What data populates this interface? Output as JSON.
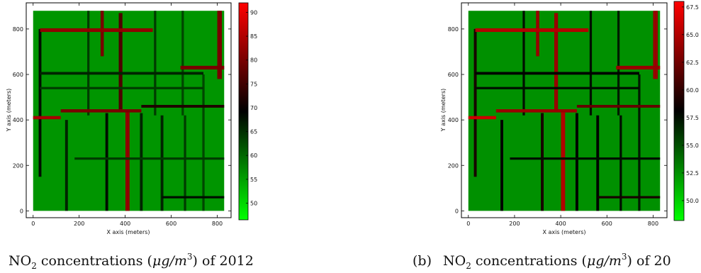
{
  "chart_data": [
    {
      "type": "heatmap",
      "caption": {
        "label": "",
        "text": "NO",
        "subscript": "2",
        "mid": " concentrations (",
        "unit_num": "μg/m",
        "unit_exp": "3",
        "tail": ") of 2012"
      },
      "xlabel": "X axis (meters)",
      "ylabel": "Y axis (meters)",
      "xlim": [
        -30,
        860
      ],
      "ylim": [
        -30,
        915
      ],
      "extent_x": [
        0,
        830
      ],
      "extent_y": [
        0,
        880
      ],
      "x_ticks": [
        0,
        200,
        400,
        600,
        800
      ],
      "y_ticks": [
        0,
        200,
        400,
        600,
        800
      ],
      "colorbar": {
        "min": 46.5,
        "max": 92,
        "ticks": [
          "50",
          "55",
          "60",
          "65",
          "70",
          "75",
          "80",
          "85",
          "90"
        ],
        "tick_values": [
          50,
          55,
          60,
          65,
          70,
          75,
          80,
          85,
          90
        ]
      },
      "colormap": [
        "#00ff00",
        "#000000",
        "#ff0000"
      ],
      "background": 56,
      "roads_vertical": [
        {
          "x": 410,
          "y0": 0,
          "y1": 440,
          "w": 18,
          "v": 82
        },
        {
          "x": 380,
          "y0": 440,
          "y1": 870,
          "w": 16,
          "v": 76
        },
        {
          "x": 300,
          "y0": 680,
          "y1": 880,
          "w": 14,
          "v": 80
        },
        {
          "x": 810,
          "y0": 580,
          "y1": 880,
          "w": 20,
          "v": 80
        },
        {
          "x": 145,
          "y0": 0,
          "y1": 400,
          "w": 12,
          "v": 66
        },
        {
          "x": 320,
          "y0": 0,
          "y1": 430,
          "w": 12,
          "v": 68
        },
        {
          "x": 470,
          "y0": 0,
          "y1": 430,
          "w": 12,
          "v": 66
        },
        {
          "x": 560,
          "y0": 0,
          "y1": 420,
          "w": 12,
          "v": 66
        },
        {
          "x": 660,
          "y0": 0,
          "y1": 420,
          "w": 10,
          "v": 64
        },
        {
          "x": 740,
          "y0": 0,
          "y1": 600,
          "w": 10,
          "v": 63
        },
        {
          "x": 30,
          "y0": 150,
          "y1": 800,
          "w": 12,
          "v": 68
        },
        {
          "x": 240,
          "y0": 420,
          "y1": 880,
          "w": 10,
          "v": 64
        },
        {
          "x": 530,
          "y0": 420,
          "y1": 880,
          "w": 10,
          "v": 64
        },
        {
          "x": 650,
          "y0": 420,
          "y1": 880,
          "w": 10,
          "v": 63
        }
      ],
      "roads_horizontal": [
        {
          "y": 795,
          "x0": 30,
          "x1": 520,
          "w": 16,
          "v": 82
        },
        {
          "y": 630,
          "x0": 640,
          "x1": 830,
          "w": 16,
          "v": 80
        },
        {
          "y": 605,
          "x0": 30,
          "x1": 740,
          "w": 12,
          "v": 66
        },
        {
          "y": 410,
          "x0": 0,
          "x1": 120,
          "w": 14,
          "v": 84
        },
        {
          "y": 440,
          "x0": 120,
          "x1": 470,
          "w": 14,
          "v": 80
        },
        {
          "y": 460,
          "x0": 470,
          "x1": 830,
          "w": 12,
          "v": 72
        },
        {
          "y": 540,
          "x0": 30,
          "x1": 740,
          "w": 10,
          "v": 64
        },
        {
          "y": 230,
          "x0": 180,
          "x1": 830,
          "w": 10,
          "v": 64
        },
        {
          "y": 60,
          "x0": 560,
          "x1": 830,
          "w": 10,
          "v": 68
        }
      ]
    },
    {
      "type": "heatmap",
      "caption": {
        "label": "(b)",
        "text": "NO",
        "subscript": "2",
        "mid": " concentrations (",
        "unit_num": "μg/m",
        "unit_exp": "3",
        "tail": ") of 20"
      },
      "xlabel": "X axis (meters)",
      "ylabel": "Y axis (meters)",
      "xlim": [
        -30,
        860
      ],
      "ylim": [
        -30,
        915
      ],
      "extent_x": [
        0,
        830
      ],
      "extent_y": [
        0,
        880
      ],
      "x_ticks": [
        0,
        200,
        400,
        600,
        800
      ],
      "y_ticks": [
        0,
        200,
        400,
        600,
        800
      ],
      "colorbar": {
        "min": 48.2,
        "max": 68,
        "ticks": [
          "50.0",
          "52.5",
          "55.0",
          "57.5",
          "60.0",
          "62.5",
          "65.0",
          "67.5"
        ],
        "tick_values": [
          50,
          52.5,
          55,
          57.5,
          60,
          62.5,
          65,
          67.5
        ]
      },
      "colormap": [
        "#00ff00",
        "#000000",
        "#ff0000"
      ],
      "background": 52.5,
      "roads_vertical": [
        {
          "x": 410,
          "y0": 0,
          "y1": 440,
          "w": 18,
          "v": 65
        },
        {
          "x": 380,
          "y0": 440,
          "y1": 870,
          "w": 16,
          "v": 64
        },
        {
          "x": 300,
          "y0": 680,
          "y1": 880,
          "w": 14,
          "v": 64
        },
        {
          "x": 810,
          "y0": 580,
          "y1": 880,
          "w": 20,
          "v": 64
        },
        {
          "x": 145,
          "y0": 0,
          "y1": 400,
          "w": 12,
          "v": 58
        },
        {
          "x": 320,
          "y0": 0,
          "y1": 430,
          "w": 12,
          "v": 59
        },
        {
          "x": 470,
          "y0": 0,
          "y1": 430,
          "w": 12,
          "v": 58
        },
        {
          "x": 560,
          "y0": 0,
          "y1": 420,
          "w": 12,
          "v": 58
        },
        {
          "x": 660,
          "y0": 0,
          "y1": 420,
          "w": 10,
          "v": 57.5
        },
        {
          "x": 740,
          "y0": 0,
          "y1": 600,
          "w": 10,
          "v": 57
        },
        {
          "x": 30,
          "y0": 150,
          "y1": 800,
          "w": 12,
          "v": 59
        },
        {
          "x": 240,
          "y0": 420,
          "y1": 880,
          "w": 10,
          "v": 57.5
        },
        {
          "x": 530,
          "y0": 420,
          "y1": 880,
          "w": 10,
          "v": 57.5
        },
        {
          "x": 650,
          "y0": 420,
          "y1": 880,
          "w": 10,
          "v": 57
        }
      ],
      "roads_horizontal": [
        {
          "y": 795,
          "x0": 30,
          "x1": 520,
          "w": 16,
          "v": 65
        },
        {
          "y": 630,
          "x0": 640,
          "x1": 830,
          "w": 16,
          "v": 64
        },
        {
          "y": 605,
          "x0": 30,
          "x1": 740,
          "w": 12,
          "v": 58
        },
        {
          "y": 410,
          "x0": 0,
          "x1": 120,
          "w": 14,
          "v": 66
        },
        {
          "y": 440,
          "x0": 120,
          "x1": 470,
          "w": 14,
          "v": 64
        },
        {
          "y": 460,
          "x0": 470,
          "x1": 830,
          "w": 12,
          "v": 62
        },
        {
          "y": 540,
          "x0": 30,
          "x1": 740,
          "w": 10,
          "v": 57.5
        },
        {
          "y": 230,
          "x0": 180,
          "x1": 830,
          "w": 10,
          "v": 57.5
        },
        {
          "y": 60,
          "x0": 560,
          "x1": 830,
          "w": 10,
          "v": 59
        }
      ]
    }
  ]
}
